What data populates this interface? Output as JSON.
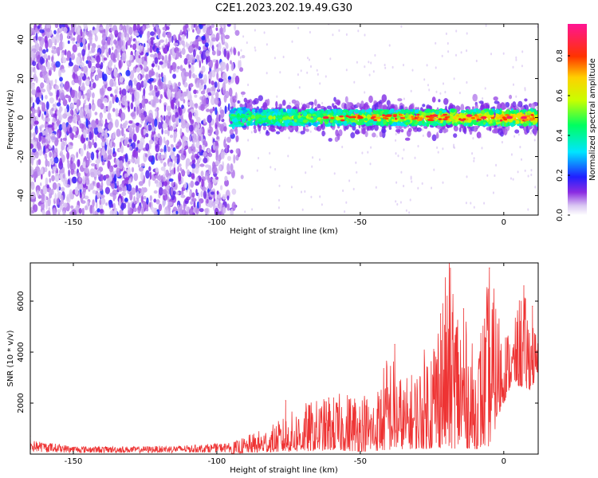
{
  "figure": {
    "title": "C2E1.2023.202.19.49.G30"
  },
  "chart_data": [
    {
      "type": "heatmap",
      "xlabel": "Height of straight line (km)",
      "ylabel": "Frequency (Hz)",
      "xlim": [
        -165,
        12
      ],
      "ylim": [
        -50,
        48
      ],
      "xticks": [
        -150,
        -100,
        -50,
        0
      ],
      "yticks": [
        -40,
        -20,
        0,
        20,
        40
      ],
      "colorbar": {
        "label": "Normalized spectral amplitude",
        "range": [
          0.0,
          0.96
        ],
        "ticks": [
          0.0,
          0.2,
          0.4,
          0.6,
          0.8
        ],
        "colormap": "rainbow"
      },
      "regions": [
        {
          "x_range": [
            -165,
            -90
          ],
          "description_value": "broadband low amplitude noise",
          "amplitude_range": [
            0.0,
            0.2
          ]
        },
        {
          "x_range": [
            -100,
            12
          ],
          "freq_center": 0,
          "freq_halfwidth": 5,
          "amplitude_range": [
            0.2,
            0.95
          ]
        }
      ],
      "peak_points": [
        {
          "x": -62,
          "y": 0,
          "value": 0.9
        },
        {
          "x": -50,
          "y": 0,
          "value": 0.85
        },
        {
          "x": -40,
          "y": 1,
          "value": 0.85
        },
        {
          "x": -24,
          "y": 1,
          "value": 0.9
        },
        {
          "x": -12,
          "y": 1,
          "value": 0.95
        },
        {
          "x": -7,
          "y": 0,
          "value": 0.9
        },
        {
          "x": 2,
          "y": 0,
          "value": 0.95
        },
        {
          "x": 7,
          "y": 0,
          "value": 0.95
        }
      ]
    },
    {
      "type": "line",
      "xlabel": "Height of straight line (km)",
      "ylabel": "SNR (10 * v/v)",
      "xlim": [
        -165,
        12
      ],
      "ylim": [
        0,
        7500
      ],
      "xticks": [
        -150,
        -100,
        -50,
        0
      ],
      "yticks": [
        2000,
        4000,
        6000
      ],
      "color": "#ee3333",
      "envelope": {
        "x": [
          -165,
          -150,
          -130,
          -110,
          -95,
          -90,
          -80,
          -70,
          -60,
          -50,
          -45,
          -40,
          -35,
          -30,
          -25,
          -20,
          -18,
          -15,
          -10,
          -5,
          0,
          3,
          6,
          9,
          12
        ],
        "ymin": [
          0,
          0,
          0,
          0,
          0,
          50,
          80,
          100,
          150,
          100,
          120,
          150,
          200,
          200,
          200,
          300,
          200,
          250,
          200,
          300,
          2000,
          2800,
          2600,
          2500,
          3000
        ],
        "ymax": [
          550,
          320,
          300,
          350,
          450,
          700,
          1200,
          2000,
          2300,
          2600,
          2300,
          4300,
          2900,
          3500,
          5000,
          7200,
          7500,
          6000,
          4000,
          7200,
          5200,
          4700,
          6600,
          5800,
          4500
        ]
      },
      "spikes": [
        {
          "x": -165,
          "y": 700
        },
        {
          "x": -76,
          "y": 2100
        },
        {
          "x": -61,
          "y": 2200
        },
        {
          "x": -38,
          "y": 4300
        },
        {
          "x": -22,
          "y": 5500
        },
        {
          "x": -19,
          "y": 7500
        },
        {
          "x": -14,
          "y": 5700
        },
        {
          "x": -5,
          "y": 7300
        },
        {
          "x": 7,
          "y": 6600
        },
        {
          "x": 10,
          "y": 5800
        }
      ]
    }
  ]
}
